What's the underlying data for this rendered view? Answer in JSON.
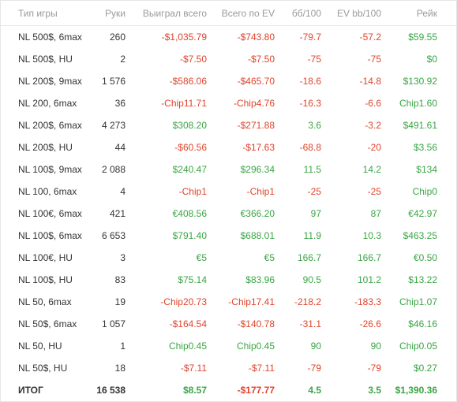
{
  "table": {
    "headers": [
      "Тип игры",
      "Руки",
      "Выиграл всего",
      "Всего по EV",
      "бб/100",
      "EV bb/100",
      "Рейк"
    ],
    "rows": [
      {
        "game": "NL 500$, 6max",
        "hands": "260",
        "won": "-$1,035.79",
        "ev": "-$743.80",
        "bb100": "-79.7",
        "evbb100": "-57.2",
        "rake": "$59.55"
      },
      {
        "game": "NL 500$, HU",
        "hands": "2",
        "won": "-$7.50",
        "ev": "-$7.50",
        "bb100": "-75",
        "evbb100": "-75",
        "rake": "$0"
      },
      {
        "game": "NL 200$, 9max",
        "hands": "1 576",
        "won": "-$586.06",
        "ev": "-$465.70",
        "bb100": "-18.6",
        "evbb100": "-14.8",
        "rake": "$130.92"
      },
      {
        "game": "NL 200, 6max",
        "hands": "36",
        "won": "-Chip11.71",
        "ev": "-Chip4.76",
        "bb100": "-16.3",
        "evbb100": "-6.6",
        "rake": "Chip1.60"
      },
      {
        "game": "NL 200$, 6max",
        "hands": "4 273",
        "won": "$308.20",
        "ev": "-$271.88",
        "bb100": "3.6",
        "evbb100": "-3.2",
        "rake": "$491.61"
      },
      {
        "game": "NL 200$, HU",
        "hands": "44",
        "won": "-$60.56",
        "ev": "-$17.63",
        "bb100": "-68.8",
        "evbb100": "-20",
        "rake": "$3.56"
      },
      {
        "game": "NL 100$, 9max",
        "hands": "2 088",
        "won": "$240.47",
        "ev": "$296.34",
        "bb100": "11.5",
        "evbb100": "14.2",
        "rake": "$134"
      },
      {
        "game": "NL 100, 6max",
        "hands": "4",
        "won": "-Chip1",
        "ev": "-Chip1",
        "bb100": "-25",
        "evbb100": "-25",
        "rake": "Chip0"
      },
      {
        "game": "NL 100€, 6max",
        "hands": "421",
        "won": "€408.56",
        "ev": "€366.20",
        "bb100": "97",
        "evbb100": "87",
        "rake": "€42.97"
      },
      {
        "game": "NL 100$, 6max",
        "hands": "6 653",
        "won": "$791.40",
        "ev": "$688.01",
        "bb100": "11.9",
        "evbb100": "10.3",
        "rake": "$463.25"
      },
      {
        "game": "NL 100€, HU",
        "hands": "3",
        "won": "€5",
        "ev": "€5",
        "bb100": "166.7",
        "evbb100": "166.7",
        "rake": "€0.50"
      },
      {
        "game": "NL 100$, HU",
        "hands": "83",
        "won": "$75.14",
        "ev": "$83.96",
        "bb100": "90.5",
        "evbb100": "101.2",
        "rake": "$13.22"
      },
      {
        "game": "NL 50, 6max",
        "hands": "19",
        "won": "-Chip20.73",
        "ev": "-Chip17.41",
        "bb100": "-218.2",
        "evbb100": "-183.3",
        "rake": "Chip1.07"
      },
      {
        "game": "NL 50$, 6max",
        "hands": "1 057",
        "won": "-$164.54",
        "ev": "-$140.78",
        "bb100": "-31.1",
        "evbb100": "-26.6",
        "rake": "$46.16"
      },
      {
        "game": "NL 50, HU",
        "hands": "1",
        "won": "Chip0.45",
        "ev": "Chip0.45",
        "bb100": "90",
        "evbb100": "90",
        "rake": "Chip0.05"
      },
      {
        "game": "NL 50$, HU",
        "hands": "18",
        "won": "-$7.11",
        "ev": "-$7.11",
        "bb100": "-79",
        "evbb100": "-79",
        "rake": "$0.27"
      }
    ],
    "total": {
      "game": "ИТОГ",
      "hands": "16 538",
      "won": "$8.57",
      "ev": "-$177.77",
      "bb100": "4.5",
      "evbb100": "3.5",
      "rake": "$1,390.36"
    }
  },
  "colors": {
    "positive": "#3aa545",
    "negative": "#e0442c",
    "header": "#9a9a9a"
  }
}
